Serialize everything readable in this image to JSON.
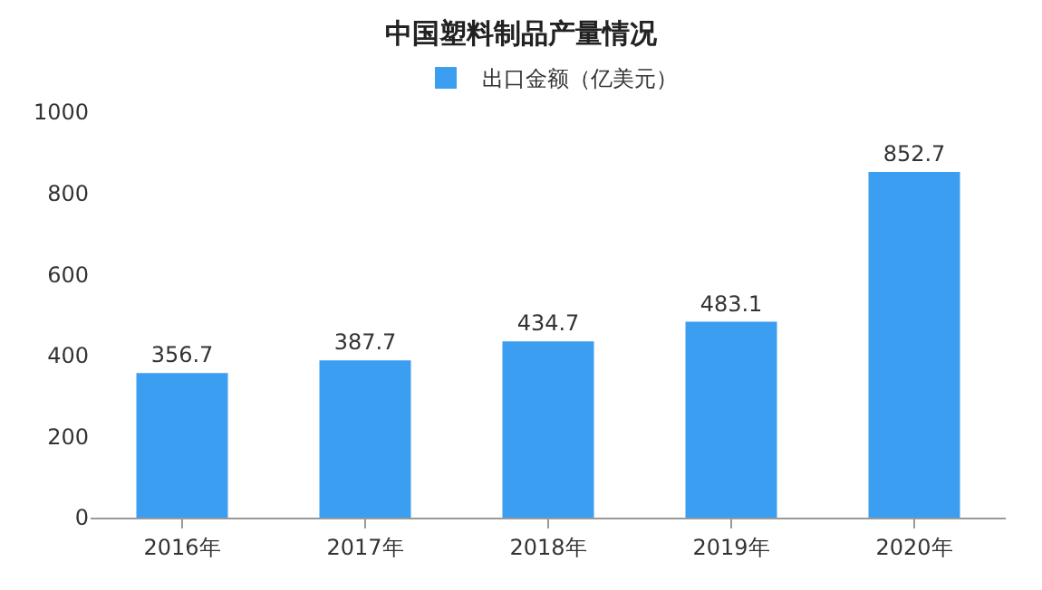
{
  "chart_data": {
    "type": "bar",
    "title": "中国塑料制品产量情况",
    "categories": [
      "2016年",
      "2017年",
      "2018年",
      "2019年",
      "2020年"
    ],
    "series": [
      {
        "name": "出口金额（亿美元）",
        "color": "#3c9ef0",
        "values": [
          356.7,
          387.7,
          434.7,
          483.1,
          852.7
        ]
      }
    ],
    "ylim": [
      0,
      1000
    ],
    "yticks": [
      0,
      200,
      400,
      600,
      800,
      1000
    ],
    "grid": false,
    "legend": "top",
    "data_labels": true
  }
}
